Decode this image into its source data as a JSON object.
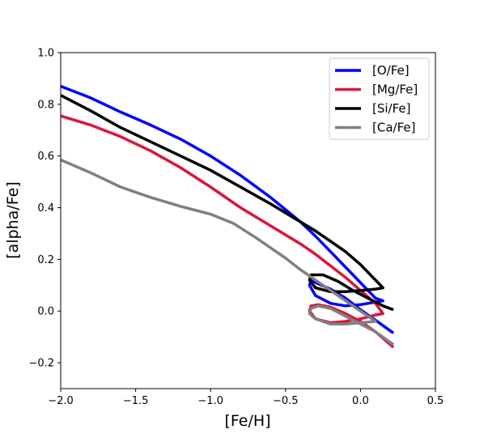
{
  "chart_data": {
    "type": "line",
    "title": "",
    "xlabel": "[Fe/H]",
    "ylabel": "[alpha/Fe]",
    "xlim": [
      -2.0,
      0.5
    ],
    "ylim": [
      -0.3,
      1.0
    ],
    "xticks": [
      -2.0,
      -1.5,
      -1.0,
      -0.5,
      0.0,
      0.5
    ],
    "yticks": [
      -0.2,
      0.0,
      0.2,
      0.4,
      0.6,
      0.8,
      1.0
    ],
    "xtick_labels": [
      "−2.0",
      "−1.5",
      "−1.0",
      "−0.5",
      "0.0",
      "0.5"
    ],
    "ytick_labels": [
      "−0.2",
      "0.0",
      "0.2",
      "0.4",
      "0.6",
      "0.8",
      "1.0"
    ],
    "grid": false,
    "legend_position": "top-right",
    "series": [
      {
        "name": "[O/Fe]",
        "color": "#0000ff",
        "points": [
          [
            -2.0,
            0.87
          ],
          [
            -1.8,
            0.825
          ],
          [
            -1.6,
            0.77
          ],
          [
            -1.4,
            0.72
          ],
          [
            -1.2,
            0.665
          ],
          [
            -1.0,
            0.6
          ],
          [
            -0.8,
            0.525
          ],
          [
            -0.6,
            0.44
          ],
          [
            -0.4,
            0.345
          ],
          [
            -0.3,
            0.29
          ],
          [
            -0.2,
            0.23
          ],
          [
            -0.1,
            0.17
          ],
          [
            0.0,
            0.11
          ],
          [
            0.1,
            0.05
          ],
          [
            0.15,
            0.04
          ],
          [
            0.1,
            0.035
          ],
          [
            0.0,
            0.025
          ],
          [
            -0.1,
            0.02
          ],
          [
            -0.2,
            0.03
          ],
          [
            -0.3,
            0.06
          ],
          [
            -0.34,
            0.1
          ],
          [
            -0.33,
            0.12
          ],
          [
            -0.28,
            0.105
          ],
          [
            -0.2,
            0.085
          ],
          [
            -0.1,
            0.05
          ],
          [
            0.0,
            0.005
          ],
          [
            0.1,
            -0.035
          ],
          [
            0.22,
            -0.085
          ]
        ]
      },
      {
        "name": "[Mg/Fe]",
        "color": "#dc143c",
        "points": [
          [
            -2.0,
            0.755
          ],
          [
            -1.8,
            0.72
          ],
          [
            -1.6,
            0.675
          ],
          [
            -1.4,
            0.62
          ],
          [
            -1.2,
            0.555
          ],
          [
            -1.0,
            0.48
          ],
          [
            -0.8,
            0.4
          ],
          [
            -0.6,
            0.33
          ],
          [
            -0.4,
            0.26
          ],
          [
            -0.3,
            0.22
          ],
          [
            -0.2,
            0.175
          ],
          [
            -0.1,
            0.13
          ],
          [
            0.0,
            0.08
          ],
          [
            0.1,
            0.03
          ],
          [
            0.15,
            -0.01
          ],
          [
            0.1,
            -0.015
          ],
          [
            0.0,
            -0.03
          ],
          [
            -0.1,
            -0.04
          ],
          [
            -0.2,
            -0.045
          ],
          [
            -0.3,
            -0.03
          ],
          [
            -0.34,
            0.0
          ],
          [
            -0.33,
            0.02
          ],
          [
            -0.28,
            0.025
          ],
          [
            -0.2,
            0.015
          ],
          [
            -0.1,
            -0.01
          ],
          [
            0.0,
            -0.04
          ],
          [
            0.1,
            -0.08
          ],
          [
            0.22,
            -0.14
          ]
        ]
      },
      {
        "name": "[Si/Fe]",
        "color": "#000000",
        "points": [
          [
            -2.0,
            0.835
          ],
          [
            -1.8,
            0.775
          ],
          [
            -1.6,
            0.71
          ],
          [
            -1.4,
            0.655
          ],
          [
            -1.2,
            0.6
          ],
          [
            -1.0,
            0.545
          ],
          [
            -0.8,
            0.48
          ],
          [
            -0.6,
            0.415
          ],
          [
            -0.4,
            0.345
          ],
          [
            -0.3,
            0.31
          ],
          [
            -0.2,
            0.27
          ],
          [
            -0.1,
            0.23
          ],
          [
            0.0,
            0.18
          ],
          [
            0.1,
            0.12
          ],
          [
            0.15,
            0.09
          ],
          [
            0.1,
            0.085
          ],
          [
            0.0,
            0.08
          ],
          [
            -0.1,
            0.075
          ],
          [
            -0.2,
            0.075
          ],
          [
            -0.3,
            0.09
          ],
          [
            -0.34,
            0.12
          ],
          [
            -0.33,
            0.14
          ],
          [
            -0.25,
            0.14
          ],
          [
            -0.15,
            0.115
          ],
          [
            -0.05,
            0.08
          ],
          [
            0.05,
            0.05
          ],
          [
            0.15,
            0.02
          ],
          [
            0.22,
            0.005
          ]
        ]
      },
      {
        "name": "[Ca/Fe]",
        "color": "#808080",
        "points": [
          [
            -2.0,
            0.585
          ],
          [
            -1.8,
            0.535
          ],
          [
            -1.6,
            0.48
          ],
          [
            -1.4,
            0.44
          ],
          [
            -1.2,
            0.405
          ],
          [
            -1.0,
            0.375
          ],
          [
            -0.85,
            0.34
          ],
          [
            -0.7,
            0.285
          ],
          [
            -0.5,
            0.205
          ],
          [
            -0.4,
            0.16
          ],
          [
            -0.3,
            0.12
          ],
          [
            -0.2,
            0.08
          ],
          [
            -0.1,
            0.04
          ],
          [
            0.0,
            0.0
          ],
          [
            0.1,
            -0.04
          ],
          [
            0.0,
            -0.045
          ],
          [
            -0.1,
            -0.05
          ],
          [
            -0.2,
            -0.05
          ],
          [
            -0.3,
            -0.03
          ],
          [
            -0.34,
            -0.01
          ],
          [
            -0.33,
            0.01
          ],
          [
            -0.28,
            0.02
          ],
          [
            -0.2,
            0.01
          ],
          [
            -0.1,
            -0.02
          ],
          [
            0.0,
            -0.05
          ],
          [
            0.1,
            -0.08
          ],
          [
            0.22,
            -0.13
          ]
        ]
      }
    ]
  }
}
